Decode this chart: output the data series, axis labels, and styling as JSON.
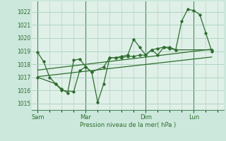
{
  "background_color": "#cce8dc",
  "plot_bg_color": "#dff0e8",
  "grid_color": "#aacfbe",
  "line_color": "#2d6e2d",
  "text_color": "#2d6e2d",
  "xlabel_text": "Pression niveau de la mer( hPa )",
  "ylim": [
    1014.5,
    1022.8
  ],
  "yticks": [
    1015,
    1016,
    1017,
    1018,
    1019,
    1020,
    1021,
    1022
  ],
  "day_labels": [
    "Sam",
    "Mar",
    "Dim",
    "Lun"
  ],
  "day_positions": [
    0,
    4,
    9,
    13
  ],
  "line1_x": [
    0,
    0.5,
    1,
    1.5,
    2,
    2.5,
    3,
    3.5,
    4,
    4.5,
    5,
    5.5,
    6,
    6.5,
    7,
    7.5,
    8,
    8.5,
    9,
    9.5,
    10,
    10.5,
    11,
    11.5,
    12,
    12.5,
    13,
    13.5,
    14,
    14.5
  ],
  "line1_y": [
    1018.9,
    1018.2,
    1017.0,
    1016.5,
    1016.1,
    1015.8,
    1018.3,
    1018.4,
    1017.8,
    1017.4,
    1015.1,
    1016.5,
    1018.5,
    1018.5,
    1018.6,
    1018.7,
    1019.9,
    1019.3,
    1018.7,
    1019.1,
    1018.7,
    1019.3,
    1019.3,
    1019.1,
    1021.3,
    1022.2,
    1022.1,
    1021.8,
    1020.4,
    1019.0
  ],
  "line2_x": [
    0,
    1.5,
    2,
    3,
    3.5,
    4,
    4.5,
    5.5,
    6,
    6.5,
    7,
    7.5,
    8,
    8.5,
    9,
    9.5,
    10,
    10.5,
    11,
    11.5,
    14.5
  ],
  "line2_y": [
    1017.0,
    1016.5,
    1016.0,
    1015.9,
    1017.5,
    1017.8,
    1017.4,
    1017.8,
    1018.5,
    1018.5,
    1018.5,
    1018.6,
    1018.6,
    1018.7,
    1018.7,
    1019.1,
    1019.2,
    1019.3,
    1019.2,
    1019.1,
    1019.1
  ],
  "trend1_x": [
    0,
    14.5
  ],
  "trend1_y": [
    1017.05,
    1018.55
  ],
  "trend2_x": [
    0,
    14.5
  ],
  "trend2_y": [
    1017.55,
    1019.15
  ],
  "xlim": [
    -0.5,
    15.5
  ]
}
